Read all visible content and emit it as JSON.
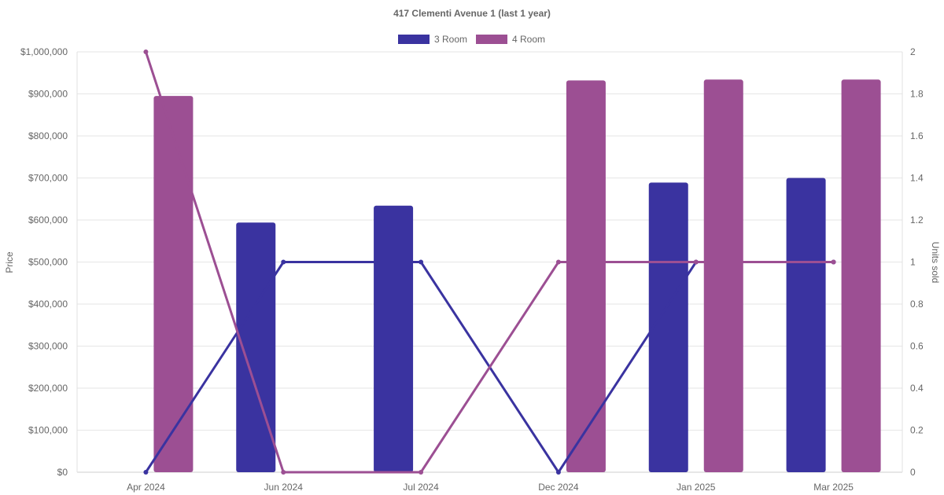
{
  "chart_data": {
    "type": "bar",
    "title": "417 Clementi Avenue 1 (last 1 year)",
    "categories": [
      "Apr 2024",
      "Jun 2024",
      "Jul 2024",
      "Dec 2024",
      "Jan 2025",
      "Mar 2025"
    ],
    "y_left": {
      "label": "Price",
      "ticks": [
        "$0",
        "$100,000",
        "$200,000",
        "$300,000",
        "$400,000",
        "$500,000",
        "$600,000",
        "$700,000",
        "$800,000",
        "$900,000",
        "$1,000,000"
      ],
      "ylim": [
        0,
        1000000
      ]
    },
    "y_right": {
      "label": "Units sold",
      "ticks": [
        "0",
        "0.2",
        "0.4",
        "0.6",
        "0.8",
        "1",
        "1.2",
        "1.4",
        "1.6",
        "1.8",
        "2"
      ],
      "ylim": [
        0,
        2
      ]
    },
    "series": [
      {
        "name": "3 Room",
        "color": "#3a33a0",
        "price": [
          null,
          594000,
          634000,
          null,
          689000,
          700000
        ],
        "units_sold": [
          0,
          1,
          1,
          0,
          1,
          1
        ]
      },
      {
        "name": "4 Room",
        "color": "#9c4f93",
        "price": [
          895000,
          null,
          null,
          932000,
          934000,
          934000
        ],
        "units_sold": [
          2,
          0,
          0,
          1,
          1,
          1
        ]
      }
    ],
    "legend": "top",
    "grid": true
  }
}
